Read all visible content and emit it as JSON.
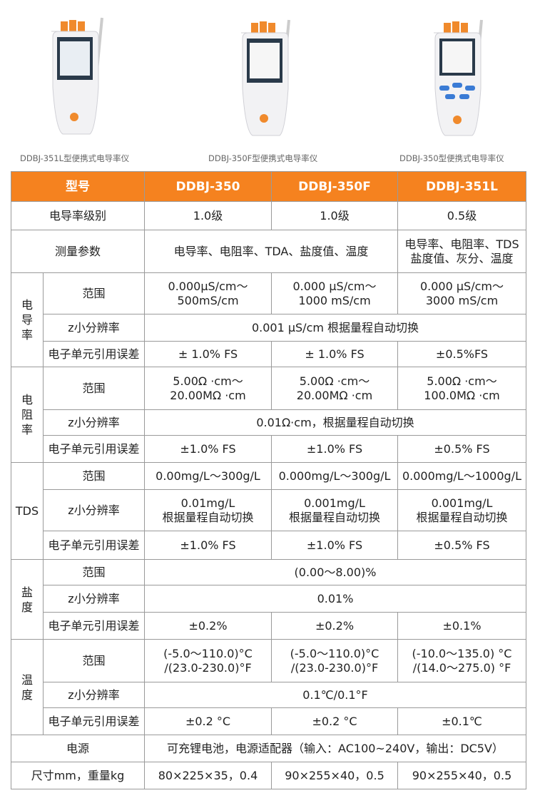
{
  "products": [
    {
      "caption": "DDBJ-351L型便携式电导率仪"
    },
    {
      "caption": "DDBJ-350F型便携式电导率仪"
    },
    {
      "caption": "DDBJ-350型便携式电导率仪"
    }
  ],
  "table": {
    "header": [
      "型号",
      "DDBJ-350",
      "DDBJ-350F",
      "DDBJ-351L"
    ],
    "body": [
      {
        "label": "电导率级别",
        "cells": [
          "1.0级",
          "1.0级",
          "0.5级"
        ]
      },
      {
        "label": "测量参数",
        "cells": [
          "电导率、电阻率、TDA、盐度值、温度",
          "电导率、电阻率、TDS\n盐度值、灰分、温度"
        ]
      },
      {
        "group": "电导率",
        "rows": [
          {
            "label": "范围",
            "cells": [
              "0.000μS/cm～\n500mS/cm",
              "0.000 μS/cm～\n1000 mS/cm",
              "0.000 μS/cm～\n3000 mS/cm"
            ]
          },
          {
            "label": "z小分辨率",
            "cells": [
              "0.001 μS/cm 根据量程自动切换"
            ]
          },
          {
            "label": "电子单元引用误差",
            "cells": [
              "± 1.0% FS",
              "± 1.0% FS",
              "±0.5%FS"
            ]
          }
        ]
      },
      {
        "group": "电阻率",
        "rows": [
          {
            "label": "范围",
            "cells": [
              "5.00Ω ·cm～\n20.00MΩ ·cm",
              "5.00Ω ·cm～\n20.00MΩ ·cm",
              "5.00Ω ·cm～\n100.0MΩ ·cm"
            ]
          },
          {
            "label": "z小分辨率",
            "cells": [
              "0.01Ω·cm，根据量程自动切换"
            ]
          },
          {
            "label": "电子单元引用误差",
            "cells": [
              "±1.0% FS",
              "±1.0% FS",
              "±0.5% FS"
            ]
          }
        ]
      },
      {
        "group": "TDS",
        "rows": [
          {
            "label": "范围",
            "cells": [
              "0.00mg/L～300g/L",
              "0.000mg/L～300g/L",
              "0.000mg/L～1000g/L"
            ]
          },
          {
            "label": "z小分辨率",
            "cells": [
              "0.01mg/L\n根据量程自动切换",
              "0.001mg/L\n根据量程自动切换",
              "0.001mg/L\n根据量程自动切换"
            ]
          },
          {
            "label": "电子单元引用误差",
            "cells": [
              "±1.0% FS",
              "±1.0% FS",
              "±0.5% FS"
            ]
          }
        ]
      },
      {
        "group": "盐度",
        "rows": [
          {
            "label": "范围",
            "cells": [
              "(0.00～8.00)%"
            ]
          },
          {
            "label": "z小分辨率",
            "cells": [
              "0.01%"
            ]
          },
          {
            "label": "电子单元引用误差",
            "cells": [
              "±0.2%",
              "±0.2%",
              "±0.1%"
            ]
          }
        ]
      },
      {
        "group": "温度",
        "rows": [
          {
            "label": "范围",
            "cells": [
              "(-5.0～110.0)°C\n/(23.0-230.0)°F",
              "(-5.0～110.0)°C\n/(23.0-230.0)°F",
              "(-10.0～135.0) °C\n/(14.0～275.0) °F"
            ]
          },
          {
            "label": "z小分辨率",
            "cells": [
              "0.1℃/0.1°F"
            ]
          },
          {
            "label": "电子单元引用误差",
            "cells": [
              "±0.2 °C",
              "±0.2 °C",
              "±0.1℃"
            ]
          }
        ]
      },
      {
        "label": "电源",
        "cells": [
          "可充锂电池，电源适配器（输入：AC100~240V，输出：DC5V）"
        ]
      },
      {
        "label": "尺寸mm，重量kg",
        "cells": [
          "80×225×35，0.4",
          "90×255×40，0.5",
          "90×255×40，0.5"
        ]
      }
    ]
  }
}
